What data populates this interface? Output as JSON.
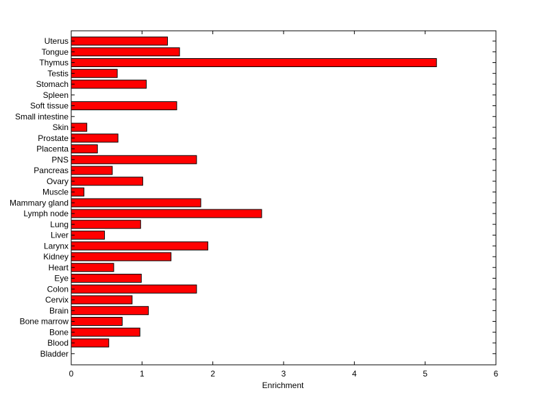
{
  "chart_data": {
    "type": "bar",
    "orientation": "horizontal",
    "title": "",
    "xlabel": "Enrichment",
    "ylabel": "",
    "xlim": [
      0,
      6
    ],
    "xticks": [
      0,
      1,
      2,
      3,
      4,
      5,
      6
    ],
    "grid": false,
    "legend": "none",
    "bar_color": "#ff0000",
    "edge_color": "#000000",
    "categories": [
      "Uterus",
      "Tongue",
      "Thymus",
      "Testis",
      "Stomach",
      "Spleen",
      "Soft tissue",
      "Small intestine",
      "Skin",
      "Prostate",
      "Placenta",
      "PNS",
      "Pancreas",
      "Ovary",
      "Muscle",
      "Mammary gland",
      "Lymph node",
      "Lung",
      "Liver",
      "Larynx",
      "Kidney",
      "Heart",
      "Eye",
      "Colon",
      "Cervix",
      "Brain",
      "Bone marrow",
      "Bone",
      "Blood",
      "Bladder"
    ],
    "values": [
      1.36,
      1.53,
      5.16,
      0.65,
      1.06,
      0,
      1.49,
      0,
      0.22,
      0.66,
      0.37,
      1.77,
      0.58,
      1.01,
      0.18,
      1.83,
      2.69,
      0.98,
      0.47,
      1.93,
      1.41,
      0.6,
      0.99,
      1.77,
      0.86,
      1.09,
      0.72,
      0.97,
      0.53,
      0
    ]
  }
}
